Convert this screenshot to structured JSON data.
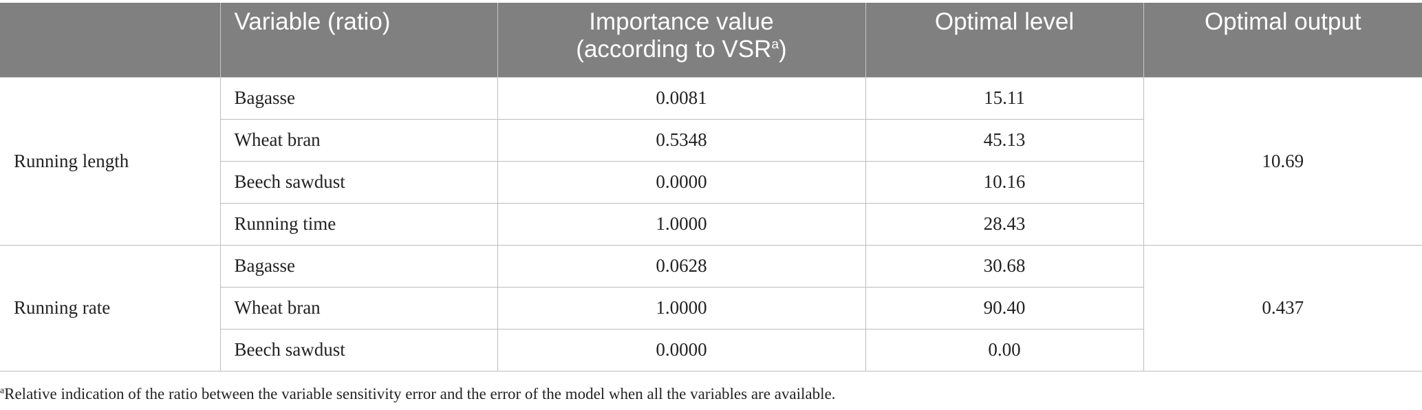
{
  "table": {
    "headers": {
      "group": "",
      "variable": "Variable (ratio)",
      "importance_line1": "Importance value",
      "importance_line2": "(according to VSR",
      "importance_sup": "a",
      "importance_close": ")",
      "optimal_level": "Optimal level",
      "optimal_output": "Optimal output"
    },
    "groups": [
      {
        "name": "Running length",
        "optimal_output": "10.69",
        "rows": [
          {
            "variable": "Bagasse",
            "importance": "0.0081",
            "optimal_level": "15.11"
          },
          {
            "variable": "Wheat bran",
            "importance": "0.5348",
            "optimal_level": "45.13"
          },
          {
            "variable": "Beech sawdust",
            "importance": "0.0000",
            "optimal_level": "10.16"
          },
          {
            "variable": "Running time",
            "importance": "1.0000",
            "optimal_level": "28.43"
          }
        ]
      },
      {
        "name": "Running rate",
        "optimal_output": "0.437",
        "rows": [
          {
            "variable": "Bagasse",
            "importance": "0.0628",
            "optimal_level": "30.68"
          },
          {
            "variable": "Wheat bran",
            "importance": "1.0000",
            "optimal_level": "90.40"
          },
          {
            "variable": "Beech sawdust",
            "importance": "0.0000",
            "optimal_level": "0.00"
          }
        ]
      }
    ]
  },
  "footnote": {
    "marker": "a",
    "text": "Relative indication of the ratio between the variable sensitivity error and the error of the model when all the variables are available."
  }
}
